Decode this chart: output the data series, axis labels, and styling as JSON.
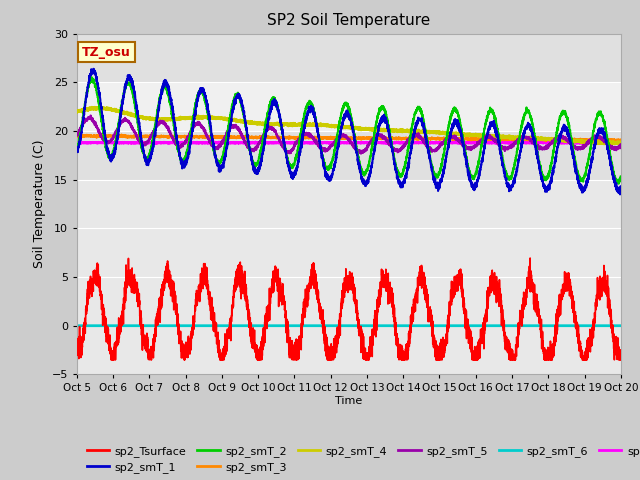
{
  "title": "SP2 Soil Temperature",
  "xlabel": "Time",
  "ylabel": "Soil Temperature (C)",
  "ylim": [
    -5,
    30
  ],
  "xlim": [
    0,
    15
  ],
  "x_tick_labels": [
    "Oct 5",
    "Oct 6",
    "Oct 7",
    "Oct 8",
    "Oct 9",
    "Oct 10",
    "Oct 11",
    "Oct 12",
    "Oct 13",
    "Oct 14",
    "Oct 15",
    "Oct 16",
    "Oct 17",
    "Oct 18",
    "Oct 19",
    "Oct 20"
  ],
  "x_tick_positions": [
    0,
    1,
    2,
    3,
    4,
    5,
    6,
    7,
    8,
    9,
    10,
    11,
    12,
    13,
    14,
    15
  ],
  "annotation_text": "TZ_osu",
  "annotation_color": "#cc0000",
  "annotation_bg": "#ffffcc",
  "annotation_border": "#aa6600",
  "series_colors": {
    "sp2_Tsurface": "#ff0000",
    "sp2_smT_1": "#0000cc",
    "sp2_smT_2": "#00cc00",
    "sp2_smT_3": "#ff8800",
    "sp2_smT_4": "#cccc00",
    "sp2_smT_5": "#9900aa",
    "sp2_smT_6": "#00cccc",
    "sp2_smT_7": "#ff00ff"
  },
  "bg_color": "#cccccc",
  "plot_bg_light": "#f0f0f0",
  "plot_bg_dark": "#e0e0e0",
  "linewidth": 1.2
}
